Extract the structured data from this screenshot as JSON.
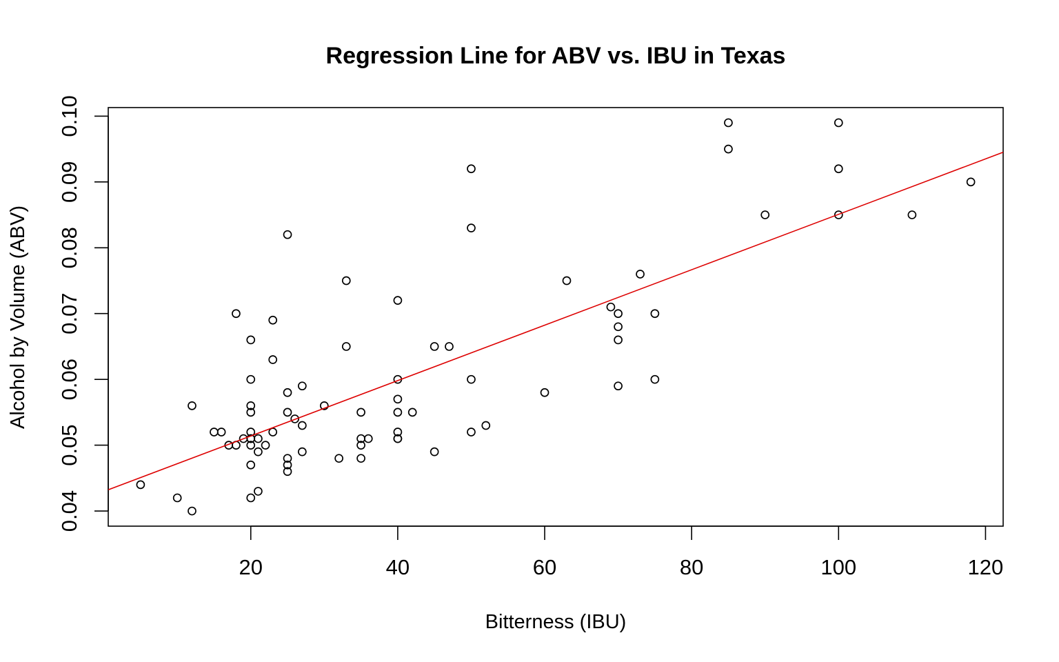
{
  "chart_data": {
    "type": "scatter",
    "title": "Regression Line for ABV vs. IBU in Texas",
    "xlabel": "Bitterness (IBU)",
    "ylabel": "Alcohol by Volume (ABV)",
    "xlim": [
      0.6,
      122.4
    ],
    "ylim": [
      0.0377,
      0.1013
    ],
    "x_ticks": [
      20,
      40,
      60,
      80,
      100,
      120
    ],
    "x_tick_labels": [
      "20",
      "40",
      "60",
      "80",
      "100",
      "120"
    ],
    "y_ticks": [
      0.04,
      0.05,
      0.06,
      0.07,
      0.08,
      0.09,
      0.1
    ],
    "y_tick_labels": [
      "0.04",
      "0.05",
      "0.06",
      "0.07",
      "0.08",
      "0.09",
      "0.10"
    ],
    "grid": false,
    "colors": {
      "points": "#000000",
      "regression_line": "#dd0000",
      "frame": "#000000"
    },
    "regression_line": {
      "intercept": 0.04298,
      "slope": 0.000421
    },
    "series": [
      {
        "x": [
          5,
          10,
          12,
          12,
          15,
          16,
          17,
          18,
          18,
          19,
          20,
          20,
          20,
          20,
          20,
          20,
          20,
          20,
          20,
          20,
          21,
          21,
          21,
          22,
          23,
          23,
          23,
          25,
          25,
          25,
          25,
          25,
          25,
          26,
          27,
          27,
          27,
          30,
          32,
          33,
          33,
          35,
          35,
          35,
          35,
          36,
          40,
          40,
          40,
          40,
          40,
          40,
          40,
          42,
          45,
          45,
          47,
          50,
          50,
          50,
          50,
          52,
          60,
          63,
          69,
          70,
          70,
          70,
          70,
          73,
          75,
          75,
          85,
          85,
          90,
          100,
          100,
          100,
          110,
          118
        ],
        "y": [
          0.044,
          0.042,
          0.04,
          0.056,
          0.052,
          0.052,
          0.05,
          0.07,
          0.05,
          0.051,
          0.066,
          0.06,
          0.056,
          0.055,
          0.052,
          0.051,
          0.051,
          0.05,
          0.047,
          0.042,
          0.051,
          0.049,
          0.043,
          0.05,
          0.069,
          0.063,
          0.052,
          0.082,
          0.058,
          0.055,
          0.048,
          0.047,
          0.046,
          0.054,
          0.059,
          0.053,
          0.049,
          0.056,
          0.048,
          0.075,
          0.065,
          0.055,
          0.051,
          0.05,
          0.048,
          0.051,
          0.072,
          0.06,
          0.057,
          0.055,
          0.052,
          0.051,
          0.051,
          0.055,
          0.065,
          0.049,
          0.065,
          0.092,
          0.083,
          0.06,
          0.052,
          0.053,
          0.058,
          0.075,
          0.071,
          0.07,
          0.068,
          0.066,
          0.059,
          0.076,
          0.07,
          0.06,
          0.099,
          0.095,
          0.085,
          0.099,
          0.092,
          0.085,
          0.085,
          0.09
        ]
      }
    ]
  }
}
